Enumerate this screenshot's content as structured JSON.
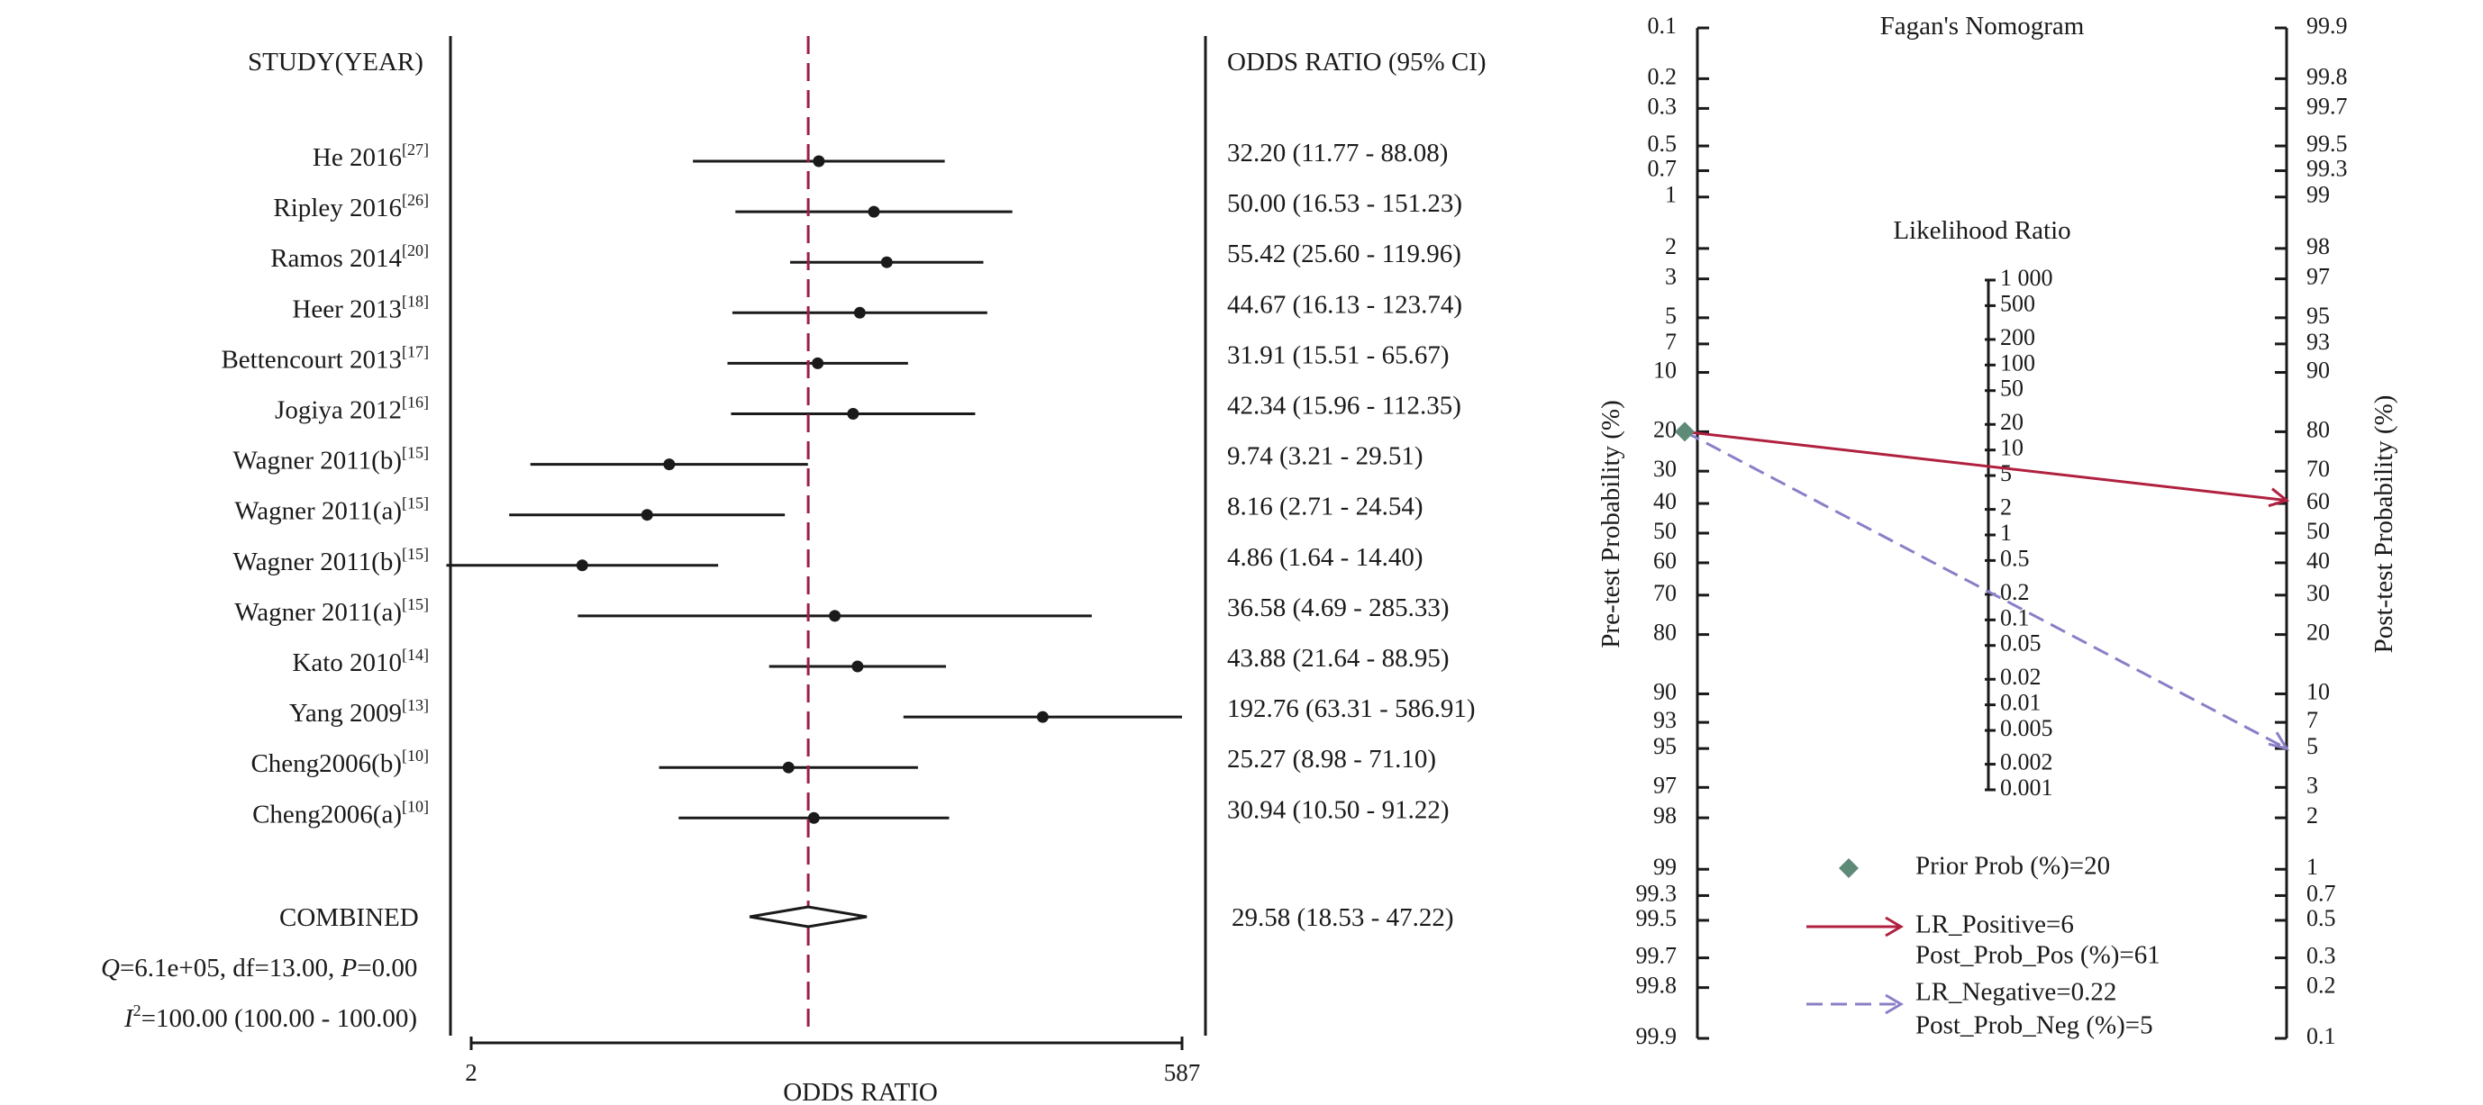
{
  "chart_data": [
    {
      "type": "forest",
      "header_study": "STUDY(YEAR)",
      "header_or": "ODDS RATIO (95% CI)",
      "xlabel": "ODDS RATIO",
      "xlim": [
        2,
        587
      ],
      "x_tick_labels": [
        "2",
        "587"
      ],
      "reference_line": 29.58,
      "accent_color": "#9c1f4a",
      "studies": [
        {
          "name": "He 2016",
          "ref": "[27]",
          "or": 32.2,
          "lo": 11.77,
          "hi": 88.08,
          "label": "32.20 (11.77 - 88.08)"
        },
        {
          "name": "Ripley 2016",
          "ref": "[26]",
          "or": 50.0,
          "lo": 16.53,
          "hi": 151.23,
          "label": "50.00 (16.53 - 151.23)"
        },
        {
          "name": "Ramos 2014",
          "ref": "[20]",
          "or": 55.42,
          "lo": 25.6,
          "hi": 119.96,
          "label": "55.42 (25.60 - 119.96)"
        },
        {
          "name": "Heer 2013",
          "ref": "[18]",
          "or": 44.67,
          "lo": 16.13,
          "hi": 123.74,
          "label": "44.67 (16.13 - 123.74)"
        },
        {
          "name": "Bettencourt 2013",
          "ref": "[17]",
          "or": 31.91,
          "lo": 15.51,
          "hi": 65.67,
          "label": "31.91 (15.51 - 65.67)"
        },
        {
          "name": "Jogiya 2012",
          "ref": "[16]",
          "or": 42.34,
          "lo": 15.96,
          "hi": 112.35,
          "label": "42.34 (15.96 - 112.35)"
        },
        {
          "name": "Wagner 2011(b)",
          "ref": "[15]",
          "or": 9.74,
          "lo": 3.21,
          "hi": 29.51,
          "label": "9.74 (3.21 - 29.51)"
        },
        {
          "name": "Wagner 2011(a)",
          "ref": "[15]",
          "or": 8.16,
          "lo": 2.71,
          "hi": 24.54,
          "label": "8.16 (2.71 - 24.54)"
        },
        {
          "name": "Wagner 2011(b)",
          "ref": "[15]",
          "or": 4.86,
          "lo": 1.64,
          "hi": 14.4,
          "label": "4.86 (1.64 - 14.40)"
        },
        {
          "name": "Wagner 2011(a)",
          "ref": "[15]",
          "or": 36.58,
          "lo": 4.69,
          "hi": 285.33,
          "label": "36.58 (4.69 - 285.33)"
        },
        {
          "name": "Kato 2010",
          "ref": "[14]",
          "or": 43.88,
          "lo": 21.64,
          "hi": 88.95,
          "label": "43.88 (21.64 - 88.95)"
        },
        {
          "name": "Yang 2009",
          "ref": "[13]",
          "or": 192.76,
          "lo": 63.31,
          "hi": 586.91,
          "label": "192.76 (63.31 - 586.91)"
        },
        {
          "name": "Cheng2006(b)",
          "ref": "[10]",
          "or": 25.27,
          "lo": 8.98,
          "hi": 71.1,
          "label": "25.27 (8.98 - 71.10)"
        },
        {
          "name": "Cheng2006(a)",
          "ref": "[10]",
          "or": 30.94,
          "lo": 10.5,
          "hi": 91.22,
          "label": "30.94 (10.50 - 91.22)"
        }
      ],
      "combined": {
        "label": "COMBINED",
        "or": 29.58,
        "lo": 18.53,
        "hi": 47.22,
        "ci_label": "29.58 (18.53 - 47.22)"
      },
      "heterogeneity": {
        "q_prefix": "Q",
        "q_rest": "=6.1e+05, df=13.00, ",
        "p_prefix": "P",
        "p_rest": "=0.00",
        "i2_prefix": "I",
        "i2_sup": "2",
        "i2_rest": "=100.00 (100.00 - 100.00)"
      }
    },
    {
      "type": "nomogram",
      "title": "Fagan's Nomogram",
      "left_axis_label": "Pre-test Probability (%)",
      "right_axis_label": "Post-test Probability (%)",
      "middle_axis_label": "Likelihood Ratio",
      "left_ticks": [
        "0.1",
        "0.2",
        "0.3",
        "0.5",
        "0.7",
        "1",
        "2",
        "3",
        "5",
        "7",
        "10",
        "20",
        "30",
        "40",
        "50",
        "60",
        "70",
        "80",
        "90",
        "93",
        "95",
        "97",
        "98",
        "99",
        "99.3",
        "99.5",
        "99.7",
        "99.8",
        "99.9"
      ],
      "right_ticks": [
        "99.9",
        "99.8",
        "99.7",
        "99.5",
        "99.3",
        "99",
        "98",
        "97",
        "95",
        "93",
        "90",
        "80",
        "70",
        "60",
        "50",
        "40",
        "30",
        "20",
        "10",
        "7",
        "5",
        "3",
        "2",
        "1",
        "0.7",
        "0.5",
        "0.3",
        "0.2",
        "0.1"
      ],
      "lr_ticks": [
        "1 000",
        "500",
        "200",
        "100",
        "50",
        "20",
        "10",
        "5",
        "2",
        "1",
        "0.5",
        "0.2",
        "0.1",
        "0.05",
        "0.02",
        "0.01",
        "0.005",
        "0.002",
        "0.001"
      ],
      "prior_prob": 20,
      "lr_positive": 6,
      "post_prob_pos": 61,
      "lr_negative": 0.22,
      "post_prob_neg": 5,
      "legend": {
        "prior": "Prior Prob (%)=20",
        "pos_line1": "LR_Positive=6",
        "pos_line2": "Post_Prob_Pos (%)=61",
        "neg_line1": "LR_Negative=0.22",
        "neg_line2": "Post_Prob_Neg (%)=5"
      },
      "colors": {
        "positive": "#b0203f",
        "negative": "#8a7fc7",
        "prior": "#5e8a78"
      }
    }
  ]
}
